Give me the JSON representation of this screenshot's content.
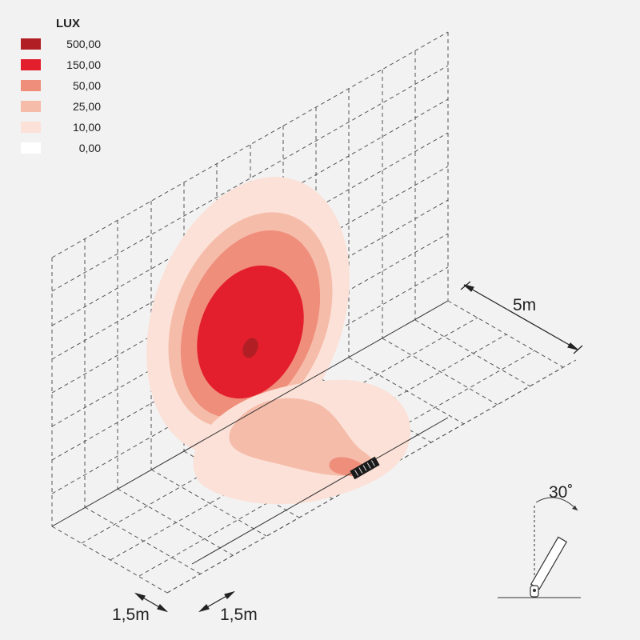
{
  "legend": {
    "title": "LUX",
    "items": [
      {
        "label": "500,00",
        "color": "#b11f24"
      },
      {
        "label": "150,00",
        "color": "#e31e2d"
      },
      {
        "label": "50,00",
        "color": "#f08e7c"
      },
      {
        "label": "25,00",
        "color": "#f6bcaa"
      },
      {
        "label": "10,00",
        "color": "#fbe1d7"
      },
      {
        "label": "0,00",
        "color": "#ffffff"
      }
    ]
  },
  "dimensions": {
    "depth": "5m",
    "grid_x": "1,5m",
    "grid_y": "1,5m"
  },
  "tilt": {
    "angle": "30˚"
  }
}
